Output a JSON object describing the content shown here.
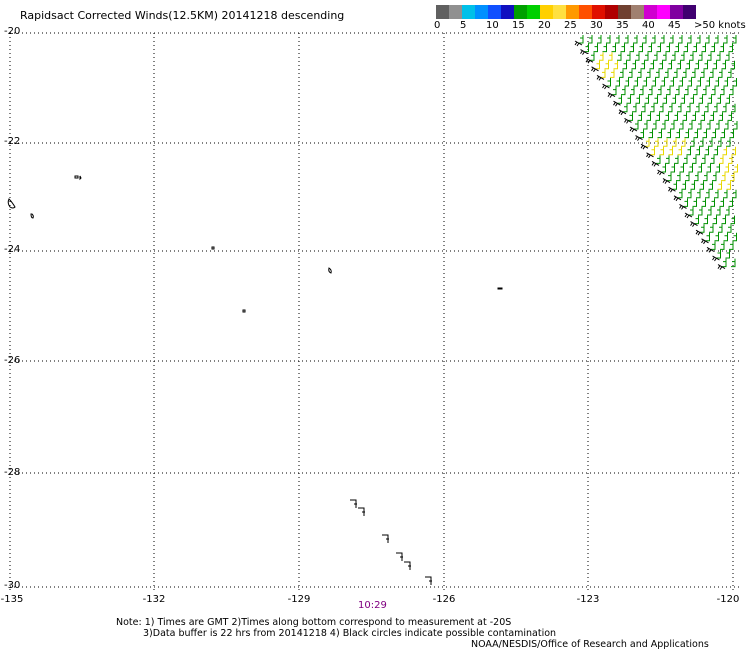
{
  "title": "Rapidsact Corrected Winds(12.5KM) 20141218 descending",
  "legend": {
    "colors": [
      "#606060",
      "#909090",
      "#00c0e8",
      "#0090ff",
      "#1050ff",
      "#1010c0",
      "#00a000",
      "#00d000",
      "#ffd000",
      "#ffe040",
      "#ff9900",
      "#ff5000",
      "#e01000",
      "#b00000",
      "#704030",
      "#a08070",
      "#d000d0",
      "#ff00ff",
      "#8000a0",
      "#400070"
    ],
    "labels": [
      "0",
      "5",
      "10",
      "15",
      "20",
      "25",
      "30",
      "35",
      "40",
      "45",
      ">50 knots"
    ]
  },
  "axes": {
    "lat_labels": [
      "-20",
      "-22",
      "-24",
      "-26",
      "-28",
      "-30"
    ],
    "lon_labels": [
      "-135",
      "-132",
      "-129",
      "-126",
      "-123",
      "-120"
    ]
  },
  "time_label": "10:29",
  "notes": {
    "line1": "Note: 1) Times are GMT 2)Times along bottom correspond to measurement at -20S",
    "line2": "3)Data buffer is 22 hrs from 20141218 4) Black circles indicate possible contamination",
    "line3": "NOAA/NESDIS/Office of Research and Applications"
  },
  "wind_colors": {
    "green": "#009000",
    "yellow": "#e8d800",
    "black": "#000000"
  }
}
